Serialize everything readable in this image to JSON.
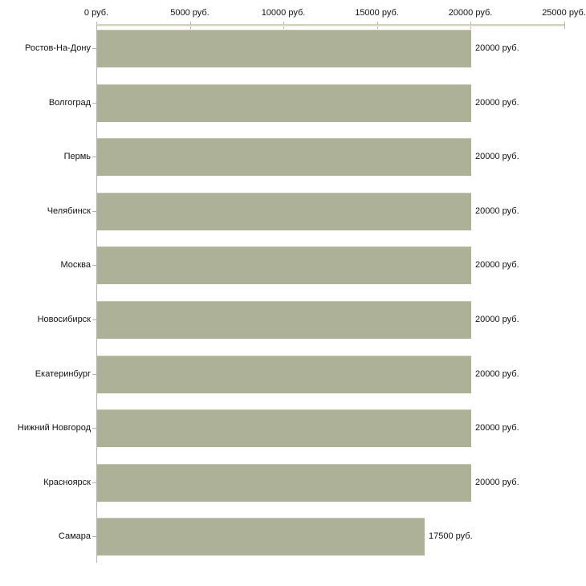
{
  "chart_data": {
    "type": "bar",
    "orientation": "horizontal",
    "title": "",
    "xlabel": "",
    "ylabel": "",
    "unit": "руб.",
    "xlim": [
      0,
      25000
    ],
    "grid": false,
    "legend": null,
    "x_ticks": [
      {
        "value": 0,
        "label": "0 руб."
      },
      {
        "value": 5000,
        "label": "5000 руб."
      },
      {
        "value": 10000,
        "label": "10000 руб."
      },
      {
        "value": 15000,
        "label": "15000 руб."
      },
      {
        "value": 20000,
        "label": "20000 руб."
      },
      {
        "value": 25000,
        "label": "25000 руб."
      }
    ],
    "bars": [
      {
        "category": "Ростов-На-Дону",
        "value": 20000,
        "label": "20000 руб."
      },
      {
        "category": "Волгоград",
        "value": 20000,
        "label": "20000 руб."
      },
      {
        "category": "Пермь",
        "value": 20000,
        "label": "20000 руб."
      },
      {
        "category": "Челябинск",
        "value": 20000,
        "label": "20000 руб."
      },
      {
        "category": "Москва",
        "value": 20000,
        "label": "20000 руб."
      },
      {
        "category": "Новосибирск",
        "value": 20000,
        "label": "20000 руб."
      },
      {
        "category": "Екатеринбург",
        "value": 20000,
        "label": "20000 руб."
      },
      {
        "category": "Нижний Новгород",
        "value": 20000,
        "label": "20000 руб."
      },
      {
        "category": "Красноярск",
        "value": 20000,
        "label": "20000 руб."
      },
      {
        "category": "Самара",
        "value": 17500,
        "label": "17500 руб."
      }
    ],
    "colors": {
      "bar": "#acb198",
      "axis_line": "#d5d1b6",
      "tick": "#b8b49a",
      "y_axis_line": "#b4b4b4",
      "category_tick": "#b3b0a0",
      "text": "#111111",
      "background": "#ffffff"
    }
  }
}
